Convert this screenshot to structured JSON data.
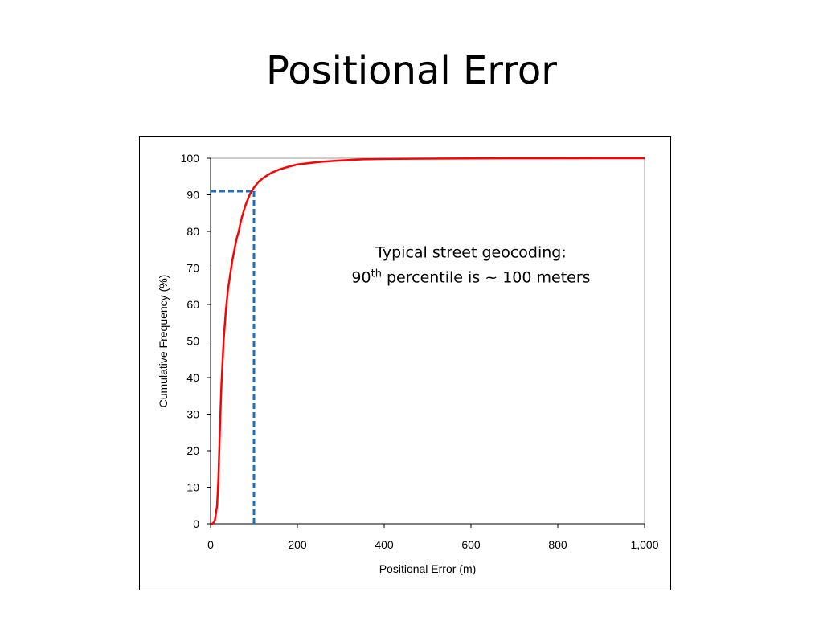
{
  "slide": {
    "title": "Positional Error"
  },
  "chart_data": {
    "type": "line",
    "xlabel": "Positional Error (m)",
    "ylabel": "Cumulative Frequency (%)",
    "xlim": [
      0,
      1000
    ],
    "ylim": [
      0,
      100
    ],
    "x_ticks": [
      "0",
      "200",
      "400",
      "600",
      "800",
      "1,000"
    ],
    "x_tick_values": [
      0,
      200,
      400,
      600,
      800,
      1000
    ],
    "y_ticks": [
      "0",
      "10",
      "20",
      "30",
      "40",
      "50",
      "60",
      "70",
      "80",
      "90",
      "100"
    ],
    "y_tick_values": [
      0,
      10,
      20,
      30,
      40,
      50,
      60,
      70,
      80,
      90,
      100
    ],
    "grid": false,
    "series": [
      {
        "color": "#ff0000",
        "x": [
          0,
          5,
          10,
          15,
          18,
          20,
          22,
          25,
          28,
          30,
          35,
          40,
          45,
          50,
          55,
          60,
          65,
          70,
          75,
          80,
          85,
          90,
          95,
          100,
          110,
          120,
          130,
          140,
          150,
          160,
          180,
          200,
          250,
          300,
          350,
          400,
          500,
          600,
          700,
          800,
          880,
          1000
        ],
        "y": [
          0,
          0,
          1,
          5,
          12,
          20,
          28,
          38,
          45,
          50,
          58,
          64,
          68,
          72,
          75,
          78,
          80,
          83,
          85,
          87,
          88.5,
          90,
          91,
          92,
          93.5,
          94.5,
          95.3,
          96,
          96.5,
          97,
          97.7,
          98.3,
          99,
          99.4,
          99.7,
          99.8,
          99.9,
          99.95,
          99.97,
          99.98,
          100,
          100
        ]
      }
    ],
    "reference_lines": [
      {
        "color": "#1f6fbf",
        "x": 100,
        "y": 91
      }
    ],
    "annotation": {
      "line1": "Typical street geocoding:",
      "line2_prefix": "90",
      "line2_sup": "th",
      "line2_suffix": " percentile is ~ 100 meters",
      "x": 600,
      "y": 72
    }
  }
}
